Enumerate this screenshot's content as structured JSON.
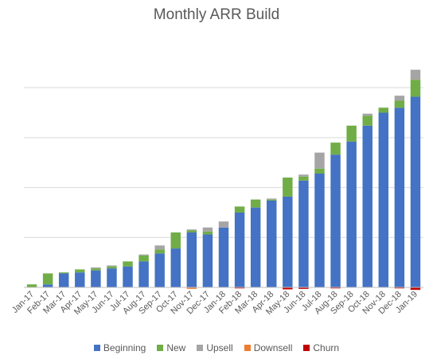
{
  "chart_data": {
    "type": "bar",
    "stacked": true,
    "title": "Monthly ARR Build",
    "xlabel": "",
    "ylabel": "",
    "y_axis_labels_visible": false,
    "grid": true,
    "legend_position": "bottom",
    "ylim": [
      -1,
      24
    ],
    "categories": [
      "Jan-17",
      "Feb-17",
      "Mar-17",
      "Apr-17",
      "May-17",
      "Jun-17",
      "Jul-17",
      "Aug-17",
      "Sep-17",
      "Oct-17",
      "Nov-17",
      "Dec-17",
      "Jan-18",
      "Feb-18",
      "Mar-18",
      "Apr-18",
      "May-18",
      "Jun-18",
      "Jul-18",
      "Aug-18",
      "Sep-18",
      "Oct-18",
      "Nov-18",
      "Dec-18",
      "Jan-19"
    ],
    "series": [
      {
        "name": "Beginning",
        "color": "#4472C4",
        "values": [
          0,
          0.3,
          1.4,
          1.5,
          1.7,
          1.9,
          2.1,
          2.6,
          3.4,
          3.9,
          5.5,
          5.3,
          6.0,
          7.5,
          8.0,
          8.7,
          9.1,
          10.7,
          11.4,
          13.3,
          14.6,
          16.2,
          17.5,
          18.0,
          19.1
        ]
      },
      {
        "name": "New",
        "color": "#70AD47",
        "values": [
          0.3,
          1.1,
          0.1,
          0.3,
          0.2,
          0.2,
          0.5,
          0.6,
          0.4,
          1.6,
          0.2,
          0.3,
          0.0,
          0.6,
          0.8,
          0.1,
          1.9,
          0.4,
          0.5,
          1.2,
          1.6,
          1.0,
          0.5,
          0.7,
          1.7
        ]
      },
      {
        "name": "Upsell",
        "color": "#A5A5A5",
        "values": [
          0,
          0,
          0,
          0,
          0.1,
          0.1,
          0,
          0.1,
          0.4,
          0,
          0.1,
          0.4,
          0.6,
          0,
          0,
          0.1,
          0,
          0.2,
          1.6,
          0,
          0,
          0.2,
          0,
          0.5,
          1.0
        ]
      },
      {
        "name": "Downsell",
        "color": "#ED7D31",
        "values": [
          0,
          0,
          0,
          0,
          0,
          0,
          0,
          0,
          0,
          0,
          -0.15,
          0,
          0,
          0,
          0,
          0,
          0,
          0,
          0,
          0,
          0,
          0,
          0,
          0,
          0
        ]
      },
      {
        "name": "Churn",
        "color": "#C00000",
        "values": [
          0,
          0,
          0,
          0,
          0,
          0,
          0,
          0,
          0,
          0,
          0,
          0,
          0,
          -0.1,
          0,
          0,
          -0.2,
          -0.15,
          0,
          -0.1,
          0,
          0,
          0,
          -0.1,
          -0.25
        ]
      }
    ]
  }
}
